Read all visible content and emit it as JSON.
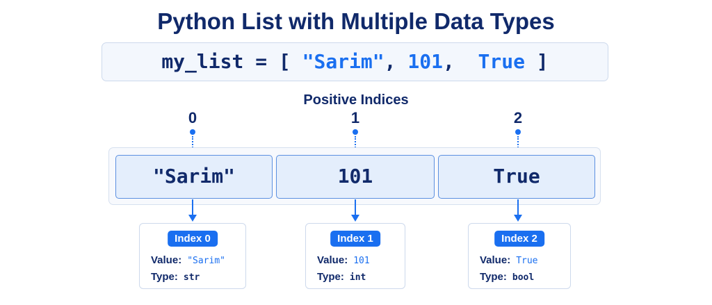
{
  "title": "Python List with Multiple Data Types",
  "code": {
    "prefix": "my_list = [ ",
    "item0": "\"Sarim\"",
    "sep1": ", ",
    "item1": "101",
    "sep2": ",  ",
    "item2": "True",
    "suffix": " ]"
  },
  "indices_label": "Positive Indices",
  "elements": [
    {
      "index_num": "0",
      "cell": "\"Sarim\"",
      "badge": "Index 0",
      "value_label": "Value:",
      "value": "\"Sarim\"",
      "type_label": "Type:",
      "type": "str"
    },
    {
      "index_num": "1",
      "cell": "101",
      "badge": "Index 1",
      "value_label": "Value:",
      "value": "101",
      "type_label": "Type:",
      "type": "int"
    },
    {
      "index_num": "2",
      "cell": "True",
      "badge": "Index 2",
      "value_label": "Value:",
      "value": "True",
      "type_label": "Type:",
      "type": "bool"
    }
  ],
  "colors": {
    "accent": "#1a6ff0",
    "text": "#10296a",
    "cell_fill": "#e4eefc"
  }
}
